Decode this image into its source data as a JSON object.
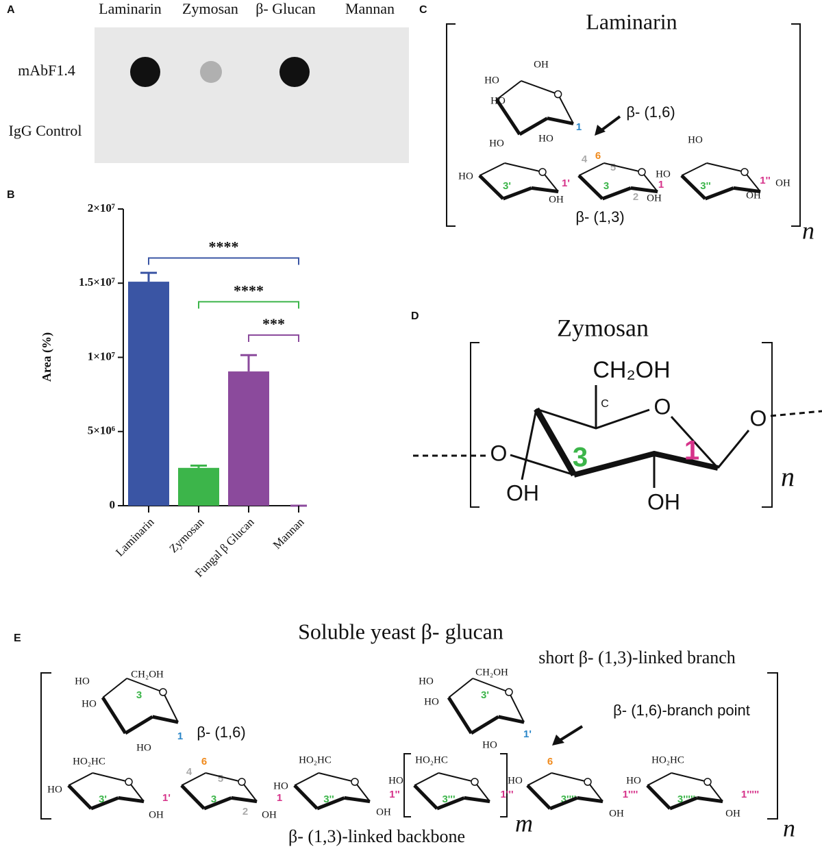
{
  "panels": {
    "a": {
      "label": "A",
      "columns": [
        "Laminarin",
        "Zymosan",
        "β- Glucan",
        "Mannan"
      ],
      "rows": [
        "mAbF1.4",
        "IgG Control"
      ]
    },
    "c": {
      "label": "C",
      "title": "Laminarin",
      "labels": [
        "OH",
        "HO",
        "HO",
        "HO",
        "1",
        "β- (1,6)",
        "6",
        "4",
        "5",
        "HO",
        "HO",
        "3'",
        "1'",
        "OH",
        "3",
        "2",
        "OH",
        "1",
        "HO",
        "HO",
        "3''",
        "1''",
        "OH",
        "OH",
        "β- (1,3)",
        "n"
      ]
    },
    "d": {
      "label": "D",
      "title": "Zymosan",
      "labels": [
        "CH₂OH",
        "C",
        "O",
        "O",
        "O",
        "3",
        "1",
        "OH",
        "OH",
        "n"
      ]
    },
    "e": {
      "label": "E",
      "title": "Soluble yeast  β- glucan",
      "labels": [
        "short β- (1,3)-linked branch",
        "β- (1,6)-branch point",
        "HO",
        "CH₂OH",
        "3",
        "HO",
        "HO",
        "1",
        "β- (1,6)",
        "4",
        "6",
        "5",
        "HO₂HC",
        "HO",
        "3'",
        "OH",
        "1'",
        "3",
        "2",
        "OH",
        "1",
        "HO",
        "HO₂HC",
        "3''",
        "OH",
        "1''",
        "HO₂HC",
        "HO",
        "3'''",
        "1'''",
        "HO",
        "CH₂OH",
        "3'",
        "HO",
        "HO",
        "1'",
        "6",
        "HO",
        "3''''",
        "OH",
        "1''''",
        "HO",
        "HO₂HC",
        "3'''''",
        "OH",
        "1'''''",
        "β- (1,3)-linked backbone",
        "m",
        "n"
      ]
    }
  },
  "chart_data": {
    "type": "bar",
    "panel_label": "B",
    "y_label": "Area (%)",
    "categories": [
      "Laminarin",
      "Zymosan",
      "Fungal β Glucan",
      "Mannan"
    ],
    "values": [
      15100000,
      2550000,
      9050000,
      0
    ],
    "errors": [
      600000,
      150000,
      1100000,
      0
    ],
    "colors": [
      "#3a55a4",
      "#3cb54a",
      "#8b4a9c",
      "#8b4a9c"
    ],
    "ylim": [
      0,
      20000000
    ],
    "yticks": [
      0,
      {
        "value": 5000000,
        "label": "5×10⁶"
      },
      {
        "value": 10000000,
        "label": "1×10⁷"
      },
      {
        "value": 15000000,
        "label": "1.5×10⁷"
      },
      {
        "value": 20000000,
        "label": "2×10⁷"
      }
    ],
    "significance": [
      {
        "label": "****",
        "between": [
          "Laminarin",
          "Mannan"
        ],
        "y": 16700000,
        "color": "#3a55a4"
      },
      {
        "label": "****",
        "between": [
          "Zymosan",
          "Mannan"
        ],
        "y": 13750000,
        "color": "#3cb54a"
      },
      {
        "label": "***",
        "between": [
          "Fungal β Glucan",
          "Mannan"
        ],
        "y": 11500000,
        "color": "#8b4a9c"
      }
    ]
  }
}
